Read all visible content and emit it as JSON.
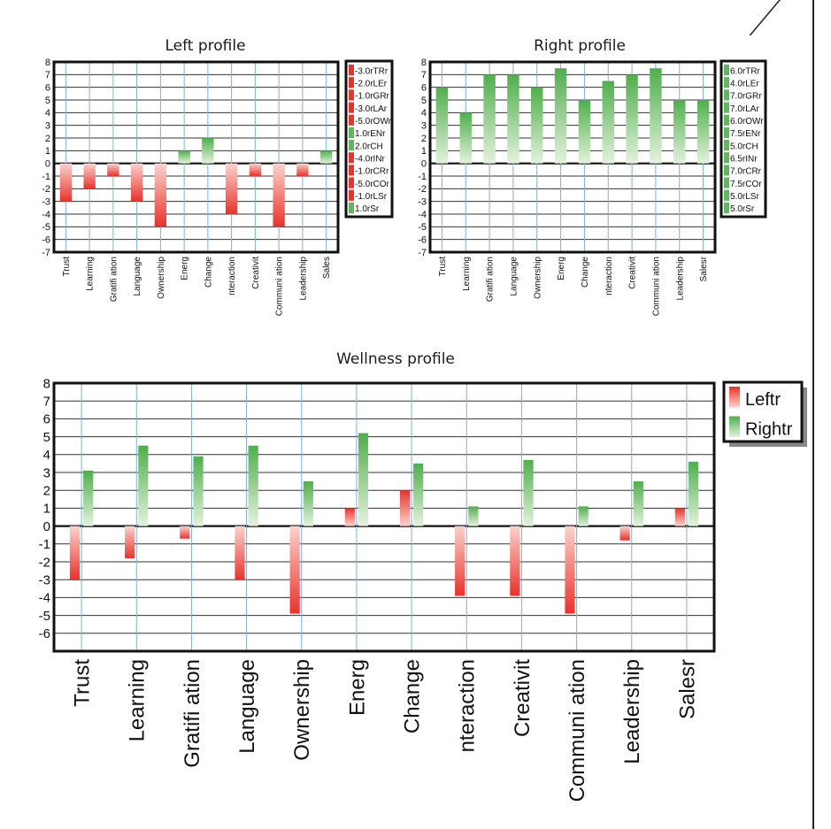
{
  "chart_data": [
    {
      "type": "bar",
      "title": "Left profile",
      "categories": [
        "Trust",
        "Learning",
        "Gratifi ation",
        "Language",
        "Ownership",
        "Energ",
        "Change",
        "nteraction",
        "Creativit",
        "Communi ation",
        "Leadership",
        "Sales"
      ],
      "values": [
        -3,
        -2,
        -1,
        -3,
        -5,
        1,
        2,
        -4,
        -1,
        -5,
        -1,
        1
      ],
      "ylim": [
        -7,
        8
      ],
      "yticks": [
        "8",
        "7",
        "6",
        "5",
        "4",
        "3",
        "2",
        "1",
        "0",
        "-1",
        "-2",
        "-3",
        "-4",
        "-5",
        "-6",
        "-7"
      ],
      "grid": true,
      "legend_position": "right",
      "legend": [
        "-3.0rTRr",
        "-2.0rLEr",
        "-1.0rGRr",
        "-3.0rLAr",
        "-5.0rOWr",
        "1.0rENr",
        "2.0rCH",
        "-4.0rINr",
        "-1.0rCRr",
        "-5.0rCOr",
        "-1.0rLSr",
        "1.0rSr"
      ],
      "colors": {
        "negative": "#e8322c",
        "positive": "#5cb85a"
      }
    },
    {
      "type": "bar",
      "title": "Right profile",
      "categories": [
        "Trust",
        "Learning",
        "Gratifi ation",
        "Language",
        "Ownership",
        "Energ",
        "Change",
        "nteraction",
        "Creativit",
        "Communi ation",
        "Leadership",
        "Salesr"
      ],
      "values": [
        6,
        4,
        7,
        7,
        6,
        7.5,
        5,
        6.5,
        7,
        7.5,
        5,
        5
      ],
      "ylim": [
        -7,
        8
      ],
      "yticks": [
        "8",
        "7",
        "6",
        "5",
        "4",
        "3",
        "2",
        "1",
        "0",
        "-1",
        "-2",
        "-3",
        "-4",
        "-5",
        "-6",
        "-7"
      ],
      "grid": true,
      "legend_position": "right",
      "legend": [
        "6.0rTRr",
        "4.0rLEr",
        "7.0rGRr",
        "7.0rLAr",
        "6.0rOWr",
        "7.5rENr",
        "5.0rCH",
        "6.5rINr",
        "7.0rCRr",
        "7.5rCOr",
        "5.0rLSr",
        "5.0rSr"
      ],
      "colors": {
        "positive": "#5cb85a"
      }
    },
    {
      "type": "bar",
      "title": "Wellness profile",
      "categories": [
        "Trust",
        "Learning",
        "Gratifi  ation",
        "Language",
        "Ownership",
        "Energ",
        "Change",
        "nteraction",
        "Creativit",
        "Communi  ation",
        "Leadership",
        "Salesr"
      ],
      "series": [
        {
          "name": "Leftr",
          "values": [
            -3,
            -1.8,
            -0.7,
            -3,
            -4.9,
            1,
            2,
            -3.9,
            -3.9,
            -4.9,
            -0.8,
            1
          ]
        },
        {
          "name": "Rightr",
          "values": [
            3.1,
            4.5,
            3.9,
            4.5,
            2.5,
            5.2,
            3.5,
            1.1,
            3.7,
            1.1,
            2.5,
            3.6
          ]
        }
      ],
      "ylim": [
        -7,
        8
      ],
      "yticks": [
        "8",
        "7",
        "6",
        "5",
        "4",
        "3",
        "2",
        "1",
        "0",
        "-1",
        "-2",
        "-3",
        "-4",
        "-5",
        "-6"
      ],
      "grid": true,
      "legend_position": "right",
      "colors": {
        "Leftr": "#e8322c",
        "Rightr": "#5cb85a"
      }
    }
  ]
}
